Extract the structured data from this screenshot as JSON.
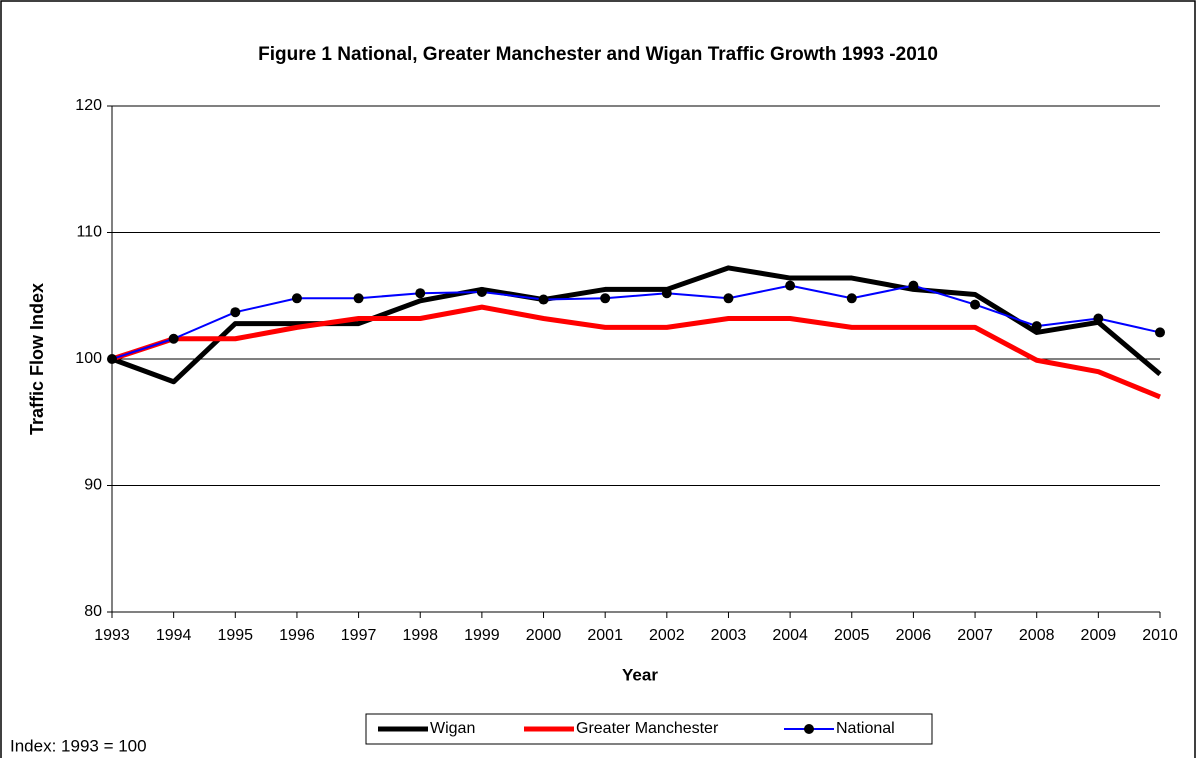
{
  "chart_data": {
    "type": "line",
    "title": "Figure 1 National, Greater Manchester and Wigan Traffic Growth 1993 -2010",
    "x_label": "Year",
    "y_label": "Traffic Flow Index",
    "annotation": "Index: 1993 = 100",
    "x": [
      1993,
      1994,
      1995,
      1996,
      1997,
      1998,
      1999,
      2000,
      2001,
      2002,
      2003,
      2004,
      2005,
      2006,
      2007,
      2008,
      2009,
      2010
    ],
    "xlim": [
      1993,
      2010
    ],
    "xticks": [
      1993,
      1994,
      1995,
      1996,
      1997,
      1998,
      1999,
      2000,
      2001,
      2002,
      2003,
      2004,
      2005,
      2006,
      2007,
      2008,
      2009,
      2010
    ],
    "ylim": [
      80,
      120
    ],
    "yticks": [
      80,
      90,
      100,
      110,
      120
    ],
    "grid": true,
    "legend": "bottom",
    "series": [
      {
        "name": "Wigan",
        "color": "#000000",
        "width": 5,
        "marker": false,
        "values": [
          100,
          98.2,
          102.8,
          102.8,
          102.8,
          104.6,
          105.5,
          104.7,
          105.5,
          105.5,
          107.2,
          106.4,
          106.4,
          105.5,
          105.1,
          102.1,
          102.9,
          98.8
        ]
      },
      {
        "name": "Greater Manchester",
        "color": "#ff0000",
        "width": 5,
        "marker": false,
        "values": [
          100,
          101.6,
          101.6,
          102.5,
          103.2,
          103.2,
          104.1,
          103.2,
          102.5,
          102.5,
          103.2,
          103.2,
          102.5,
          102.5,
          102.5,
          99.9,
          99.0,
          97.0
        ]
      },
      {
        "name": "National",
        "color": "#0000ff",
        "width": 2,
        "marker": true,
        "values": [
          100,
          101.6,
          103.7,
          104.8,
          104.8,
          105.2,
          105.3,
          104.7,
          104.8,
          105.2,
          104.8,
          105.8,
          104.8,
          105.8,
          104.3,
          102.6,
          103.2,
          102.1
        ]
      }
    ]
  }
}
